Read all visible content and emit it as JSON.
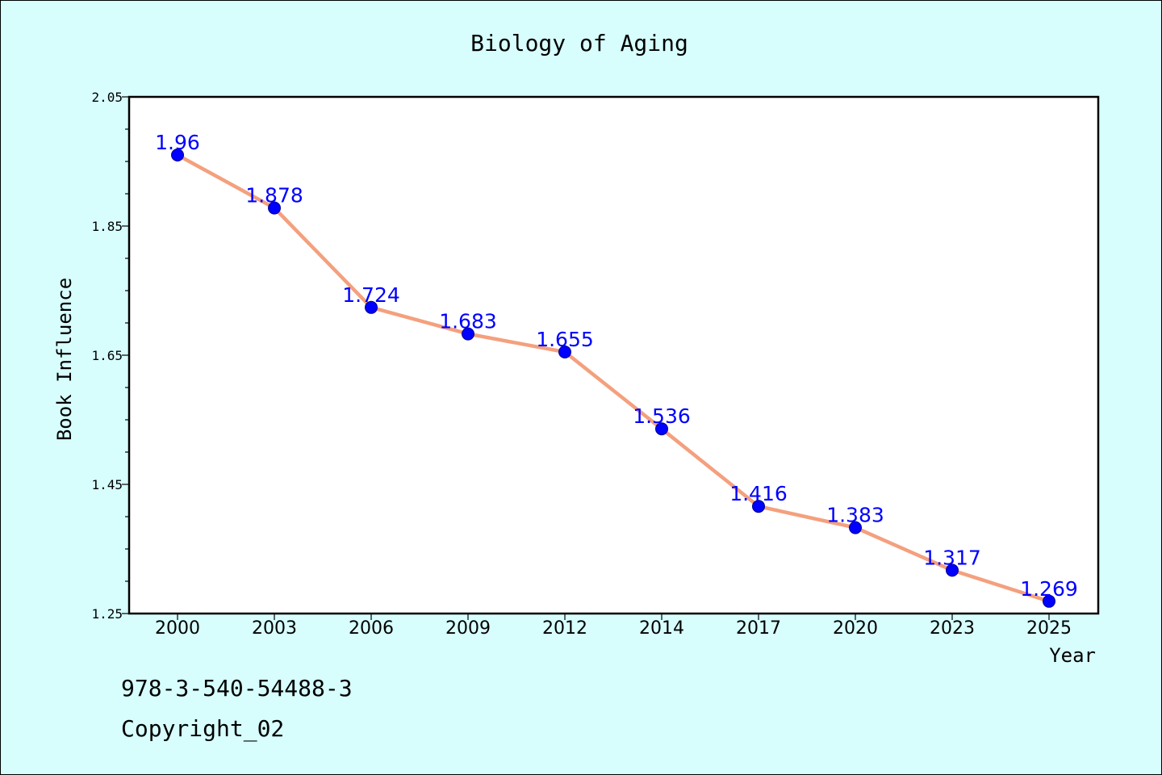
{
  "chart_data": {
    "type": "line",
    "title": "Biology of Aging",
    "xlabel": "Year",
    "ylabel": "Book Influence",
    "categories": [
      "2000",
      "2003",
      "2006",
      "2009",
      "2012",
      "2014",
      "2017",
      "2020",
      "2023",
      "2025"
    ],
    "series": [
      {
        "values": [
          1.96,
          1.878,
          1.724,
          1.683,
          1.655,
          1.536,
          1.416,
          1.383,
          1.317,
          1.269
        ]
      }
    ],
    "data_labels": [
      "1.96",
      "1.878",
      "1.724",
      "1.683",
      "1.655",
      "1.536",
      "1.416",
      "1.383",
      "1.317",
      "1.269"
    ],
    "ylim": [
      1.25,
      2.05
    ],
    "yticks": [
      "2.05",
      "1.85",
      "1.65",
      "1.45",
      "1.25"
    ],
    "grid": false,
    "line_color": "#f4a07e",
    "marker_color": "#0000ff",
    "label_color": "#0000ff"
  },
  "footer": {
    "isbn": "978-3-540-54488-3",
    "copyright": "Copyright_02"
  }
}
